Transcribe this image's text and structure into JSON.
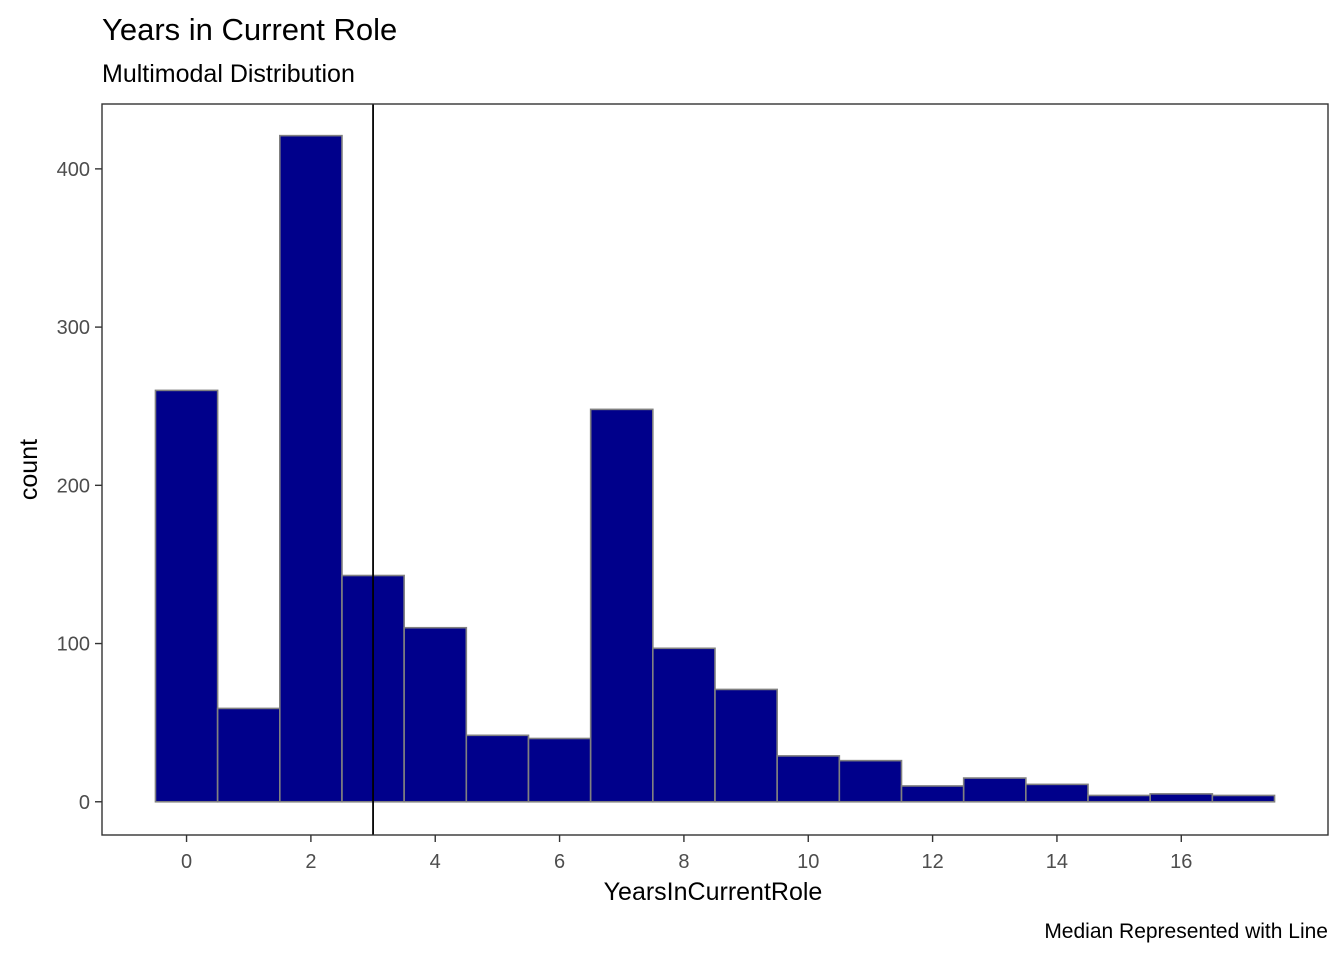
{
  "chart_data": {
    "type": "bar",
    "title": "Years in Current Role",
    "subtitle": "Multimodal Distribution",
    "caption": "Median Represented with Line",
    "xlabel": "YearsInCurrentRole",
    "ylabel": "count",
    "x": [
      0,
      1,
      2,
      3,
      4,
      5,
      6,
      7,
      8,
      9,
      10,
      11,
      12,
      13,
      14,
      15,
      16,
      17
    ],
    "values": [
      260,
      59,
      421,
      143,
      110,
      42,
      40,
      248,
      97,
      71,
      29,
      26,
      10,
      15,
      11,
      4,
      5,
      4
    ],
    "bin_width": 1,
    "xlim": [
      -1.36,
      18.36
    ],
    "ylim": [
      -21,
      441
    ],
    "x_ticks": [
      0,
      2,
      4,
      6,
      8,
      10,
      12,
      14,
      16
    ],
    "y_ticks": [
      0,
      100,
      200,
      300,
      400
    ],
    "median": 3,
    "grid": false,
    "legend": "none",
    "colors": {
      "fill": "#00008B",
      "outline": "#808080",
      "median_line": "#000000",
      "panel_border": "#333333"
    }
  }
}
